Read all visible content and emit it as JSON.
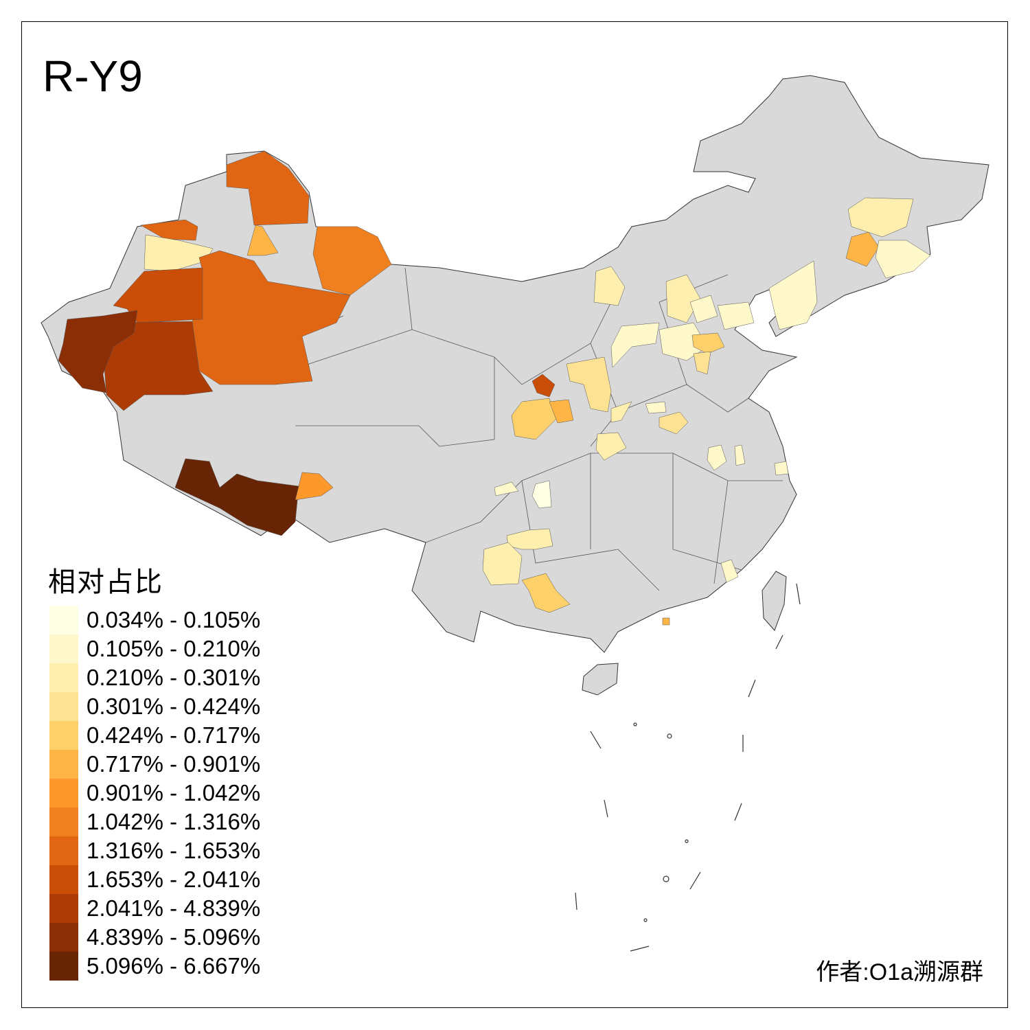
{
  "title": "R-Y9",
  "legend": {
    "title": "相对占比",
    "items": [
      {
        "label": "0.034% - 0.105%",
        "color": "#FFFFE5"
      },
      {
        "label": "0.105% - 0.210%",
        "color": "#FFF8CA"
      },
      {
        "label": "0.210% - 0.301%",
        "color": "#FEEFAF"
      },
      {
        "label": "0.301% - 0.424%",
        "color": "#FEE294"
      },
      {
        "label": "0.424% - 0.717%",
        "color": "#FED06A"
      },
      {
        "label": "0.717% - 0.901%",
        "color": "#FEB546"
      },
      {
        "label": "0.901% - 1.042%",
        "color": "#FD982C"
      },
      {
        "label": "1.042% - 1.316%",
        "color": "#F07F20"
      },
      {
        "label": "1.316% - 1.653%",
        "color": "#E06614"
      },
      {
        "label": "1.653% - 2.041%",
        "color": "#CB4E08"
      },
      {
        "label": "2.041% - 4.839%",
        "color": "#AC3B05"
      },
      {
        "label": "4.839% - 5.096%",
        "color": "#8B2D05"
      },
      {
        "label": "5.096% - 6.667%",
        "color": "#672506"
      }
    ]
  },
  "no_data_color": "#D9D9D9",
  "credit": "作者:O1a溯源群"
}
